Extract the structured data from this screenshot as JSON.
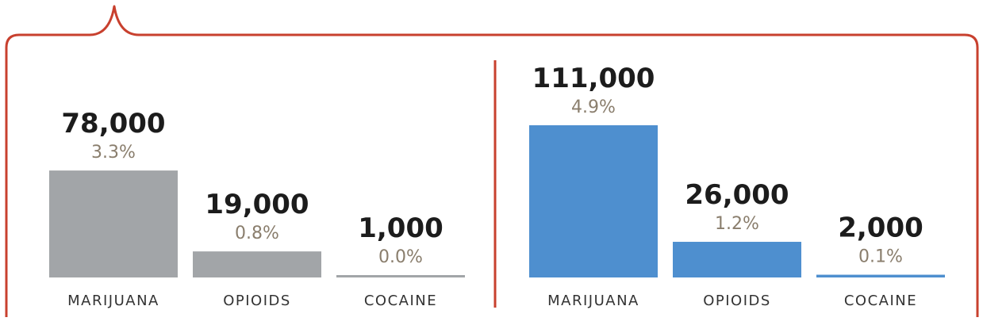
{
  "colors": {
    "frame": "#c8402e",
    "divider": "#c8402e",
    "panel_left_bar": "#a2a5a8",
    "panel_right_bar": "#4e8fcf",
    "count_text": "#1c1c1c",
    "percent_text": "#8a7e6d",
    "category_text": "#333333"
  },
  "chart_data": [
    {
      "type": "bar",
      "categories": [
        "MARIJUANA",
        "OPIOIDS",
        "COCAINE"
      ],
      "values": [
        78000,
        19000,
        1000
      ],
      "value_labels": [
        "78,000",
        "19,000",
        "1,000"
      ],
      "percent_labels": [
        "3.3%",
        "0.8%",
        "0.0%"
      ],
      "ylim": [
        0,
        111000
      ],
      "grid": false,
      "bar_color": "#a2a5a8"
    },
    {
      "type": "bar",
      "categories": [
        "MARIJUANA",
        "OPIOIDS",
        "COCAINE"
      ],
      "values": [
        111000,
        26000,
        2000
      ],
      "value_labels": [
        "111,000",
        "26,000",
        "2,000"
      ],
      "percent_labels": [
        "4.9%",
        "1.2%",
        "0.1%"
      ],
      "ylim": [
        0,
        111000
      ],
      "grid": false,
      "bar_color": "#4e8fcf"
    }
  ]
}
